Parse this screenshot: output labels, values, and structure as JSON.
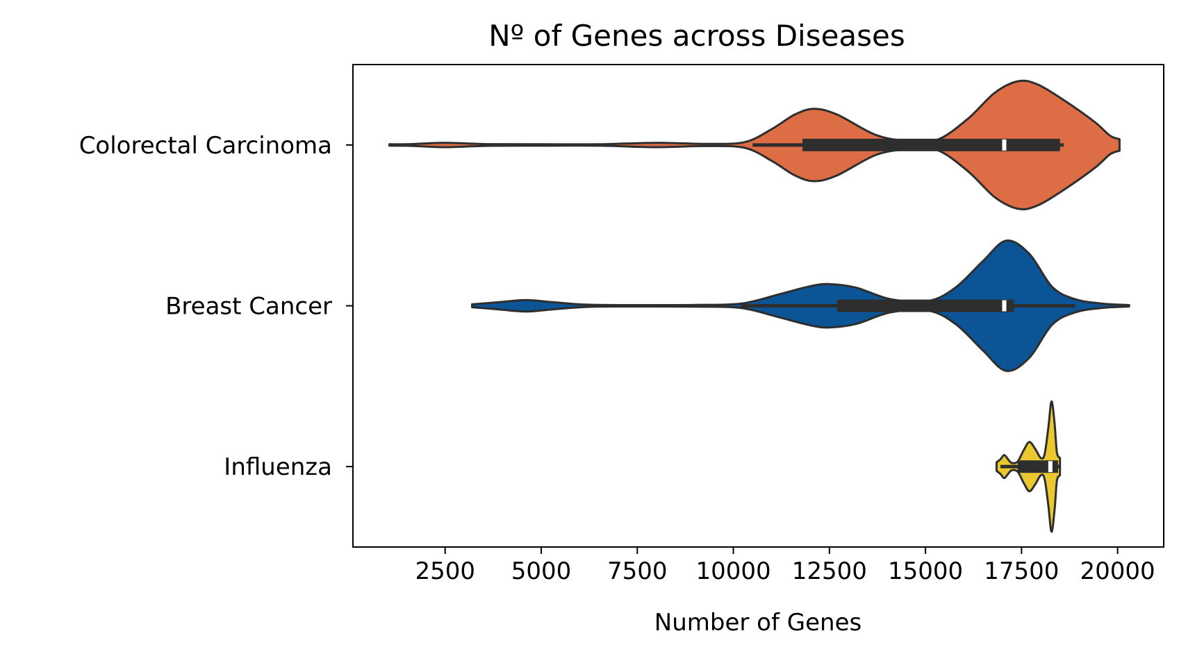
{
  "chart_data": {
    "type": "violin",
    "orientation": "horizontal",
    "title": "Nº of Genes across Diseases",
    "xlabel": "Number of Genes",
    "ylabel": "",
    "xlim": [
      100,
      21200
    ],
    "x_ticks": [
      2500,
      5000,
      7500,
      10000,
      12500,
      15000,
      17500,
      20000
    ],
    "x_tick_labels": [
      "2500",
      "5000",
      "7500",
      "10000",
      "12500",
      "15000",
      "17500",
      "20000"
    ],
    "grid": false,
    "legend": "none",
    "categories": [
      "Colorectal Carcinoma",
      "Breast Cancer",
      "Influenza"
    ],
    "series": [
      {
        "category": "Colorectal Carcinoma",
        "color": "#dd6d44",
        "min": 1050,
        "max": 20050,
        "q1": 11800,
        "median": 17050,
        "q3": 18500,
        "whisker_low": 10500,
        "whisker_high": 18600,
        "density": [
          [
            1050,
            0.01
          ],
          [
            1600,
            0.012
          ],
          [
            2500,
            0.03
          ],
          [
            3600,
            0.012
          ],
          [
            5000,
            0.01
          ],
          [
            6500,
            0.01
          ],
          [
            8000,
            0.03
          ],
          [
            9300,
            0.015
          ],
          [
            10300,
            0.04
          ],
          [
            11000,
            0.22
          ],
          [
            11600,
            0.42
          ],
          [
            12100,
            0.5
          ],
          [
            12700,
            0.42
          ],
          [
            13700,
            0.14
          ],
          [
            14500,
            0.06
          ],
          [
            15300,
            0.07
          ],
          [
            16100,
            0.36
          ],
          [
            16800,
            0.72
          ],
          [
            17400,
            0.88
          ],
          [
            17900,
            0.84
          ],
          [
            18600,
            0.62
          ],
          [
            19400,
            0.32
          ],
          [
            19800,
            0.13
          ],
          [
            20050,
            0.08
          ]
        ]
      },
      {
        "category": "Breast Cancer",
        "color": "#0b5596",
        "min": 3200,
        "max": 20300,
        "q1": 12700,
        "median": 17050,
        "q3": 17300,
        "whisker_low": 10200,
        "whisker_high": 18900,
        "density": [
          [
            3200,
            0.02
          ],
          [
            3900,
            0.05
          ],
          [
            4600,
            0.08
          ],
          [
            5300,
            0.05
          ],
          [
            6200,
            0.015
          ],
          [
            7500,
            0.01
          ],
          [
            9000,
            0.012
          ],
          [
            10200,
            0.03
          ],
          [
            11200,
            0.16
          ],
          [
            12000,
            0.27
          ],
          [
            12500,
            0.3
          ],
          [
            13200,
            0.25
          ],
          [
            14100,
            0.09
          ],
          [
            15100,
            0.07
          ],
          [
            15800,
            0.26
          ],
          [
            16500,
            0.62
          ],
          [
            17100,
            0.9
          ],
          [
            17700,
            0.72
          ],
          [
            18300,
            0.26
          ],
          [
            18900,
            0.09
          ],
          [
            19600,
            0.03
          ],
          [
            20300,
            0.01
          ]
        ]
      },
      {
        "category": "Influenza",
        "color": "#ecc830",
        "min": 16850,
        "max": 18500,
        "q1": 17400,
        "median": 18250,
        "q3": 18450,
        "whisker_low": 16950,
        "whisker_high": 18500,
        "density": [
          [
            16850,
            0.06
          ],
          [
            16950,
            0.1
          ],
          [
            17050,
            0.16
          ],
          [
            17150,
            0.1
          ],
          [
            17250,
            0.05
          ],
          [
            17400,
            0.07
          ],
          [
            17550,
            0.22
          ],
          [
            17700,
            0.34
          ],
          [
            17850,
            0.25
          ],
          [
            18000,
            0.12
          ],
          [
            18100,
            0.17
          ],
          [
            18200,
            0.55
          ],
          [
            18280,
            0.9
          ],
          [
            18360,
            0.6
          ],
          [
            18420,
            0.2
          ],
          [
            18500,
            0.12
          ]
        ]
      }
    ]
  }
}
